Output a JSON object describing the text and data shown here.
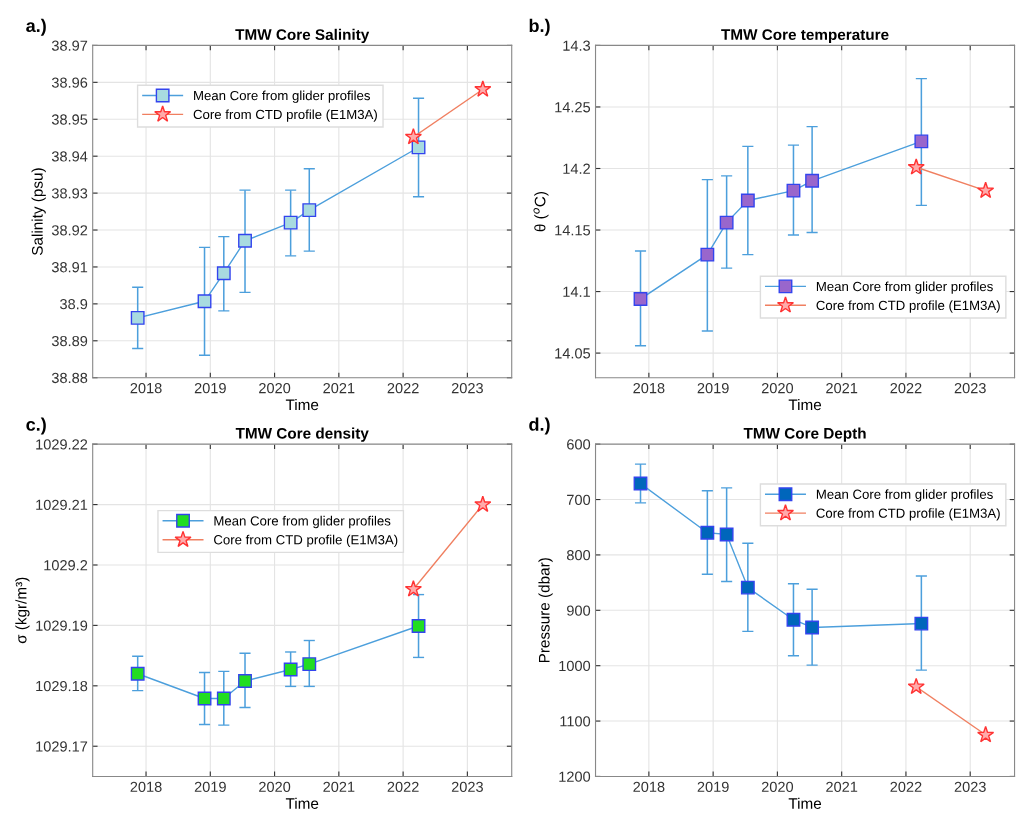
{
  "chart_data": [
    {
      "type": "line",
      "title": "TMW Core Salinity",
      "xlabel": "Time",
      "ylabel": "Salinity (psu)",
      "annotations": [
        "a.)"
      ],
      "xlim": [
        2017.17,
        2023.69
      ],
      "xticks": [
        2018,
        2019,
        2020,
        2021,
        2022,
        2023
      ],
      "ylim": [
        38.88,
        38.97
      ],
      "yticks": [
        38.88,
        38.89,
        38.9,
        38.91,
        38.92,
        38.93,
        38.94,
        38.95,
        38.96,
        38.97
      ],
      "grid": true,
      "legend": "top",
      "series": [
        {
          "name": "Mean Core from glider profiles",
          "color": "#a8dbe0",
          "marker": "square",
          "x": [
            2017.87,
            2018.91,
            2019.21,
            2019.54,
            2020.25,
            2020.54,
            2022.24
          ],
          "values": [
            38.8962,
            38.9007,
            38.9083,
            38.9171,
            38.922,
            38.9254,
            38.9424
          ],
          "errors": [
            [
              38.8879,
              38.9045
            ],
            [
              38.8861,
              38.9153
            ],
            [
              38.8981,
              38.9182
            ],
            [
              38.9031,
              38.9308
            ],
            [
              38.913,
              38.9308
            ],
            [
              38.9143,
              38.9366
            ],
            [
              38.929,
              38.9557
            ]
          ]
        },
        {
          "name": "Core from CTD profile (E1M3A)",
          "color": "#ffaaaa",
          "marker": "star",
          "x": [
            2022.16,
            2023.24
          ],
          "values": [
            38.9452,
            38.9581
          ]
        }
      ]
    },
    {
      "type": "line",
      "title": "TMW Core temperature",
      "xlabel": "Time",
      "ylabel": "θ ($^{o}$C)",
      "annotations": [
        "b.)"
      ],
      "xlim": [
        2017.17,
        2023.69
      ],
      "xticks": [
        2018,
        2019,
        2020,
        2021,
        2022,
        2023
      ],
      "ylim": [
        14.03,
        14.3
      ],
      "yticks": [
        14.05,
        14.1,
        14.15,
        14.2,
        14.25,
        14.3
      ],
      "grid": true,
      "legend": "bottom right",
      "series": [
        {
          "name": "Mean Core from glider profiles",
          "color": "#9966cc",
          "marker": "square",
          "x": [
            2017.87,
            2018.91,
            2019.21,
            2019.54,
            2020.25,
            2020.54,
            2022.24
          ],
          "values": [
            14.094,
            14.13,
            14.156,
            14.174,
            14.182,
            14.19,
            14.222
          ],
          "errors": [
            [
              14.056,
              14.133
            ],
            [
              14.068,
              14.191
            ],
            [
              14.119,
              14.194
            ],
            [
              14.13,
              14.218
            ],
            [
              14.146,
              14.219
            ],
            [
              14.148,
              14.234
            ],
            [
              14.17,
              14.273
            ]
          ]
        },
        {
          "name": "Core from CTD profile (E1M3A)",
          "color": "#ffaaaa",
          "marker": "star",
          "x": [
            2022.16,
            2023.24
          ],
          "values": [
            14.201,
            14.182
          ]
        }
      ]
    },
    {
      "type": "line",
      "title": "TMW Core density",
      "xlabel": "Time",
      "ylabel": "σ (kgr/m³)",
      "annotations": [
        "c.)"
      ],
      "xlim": [
        2017.17,
        2023.69
      ],
      "xticks": [
        2018,
        2019,
        2020,
        2021,
        2022,
        2023
      ],
      "ylim": [
        1029.165,
        1029.22
      ],
      "yticks": [
        1029.17,
        1029.18,
        1029.19,
        1029.2,
        1029.21,
        1029.22
      ],
      "grid": true,
      "legend": "top left",
      "series": [
        {
          "name": "Mean Core from glider profiles",
          "color": "#22dd22",
          "marker": "square",
          "x": [
            2017.87,
            2018.91,
            2019.21,
            2019.54,
            2020.25,
            2020.54,
            2022.24
          ],
          "values": [
            1029.182,
            1029.1779,
            1029.1779,
            1029.1808,
            1029.1827,
            1029.1836,
            1029.1899
          ],
          "errors": [
            [
              1029.1792,
              1029.1849
            ],
            [
              1029.1736,
              1029.1822
            ],
            [
              1029.1735,
              1029.1824
            ],
            [
              1029.1764,
              1029.1854
            ],
            [
              1029.1799,
              1029.1856
            ],
            [
              1029.1799,
              1029.1875
            ],
            [
              1029.1847,
              1029.1951
            ]
          ]
        },
        {
          "name": "Core from CTD profile (E1M3A)",
          "color": "#ffaaaa",
          "marker": "star",
          "x": [
            2022.16,
            2023.24
          ],
          "values": [
            1029.196,
            1029.21
          ]
        }
      ]
    },
    {
      "type": "line",
      "title": "TMW Core Depth",
      "xlabel": "Time",
      "ylabel": "Pressure (dbar)",
      "annotations": [
        "d.)"
      ],
      "xlim": [
        2017.17,
        2023.69
      ],
      "xticks": [
        2018,
        2019,
        2020,
        2021,
        2022,
        2023
      ],
      "ylim": [
        1200,
        600
      ],
      "yticks": [
        600,
        700,
        800,
        900,
        1000,
        1100,
        1200
      ],
      "grid": true,
      "legend": "top right",
      "series": [
        {
          "name": "Mean Core from glider profiles",
          "color": "#0066bb",
          "marker": "square",
          "x": [
            2017.87,
            2018.91,
            2019.21,
            2019.54,
            2020.25,
            2020.54,
            2022.24
          ],
          "values": [
            671,
            760,
            763,
            859,
            917,
            931,
            924
          ],
          "errors": [
            [
              706,
              636
            ],
            [
              835,
              684
            ],
            [
              848,
              679
            ],
            [
              938,
              779
            ],
            [
              982,
              852
            ],
            [
              999,
              862
            ],
            [
              1008,
              838
            ]
          ]
        },
        {
          "name": "Core from CTD profile (E1M3A)",
          "color": "#ffaaaa",
          "marker": "star",
          "x": [
            2022.16,
            2023.24
          ],
          "values": [
            1038,
            1125
          ]
        }
      ]
    }
  ]
}
